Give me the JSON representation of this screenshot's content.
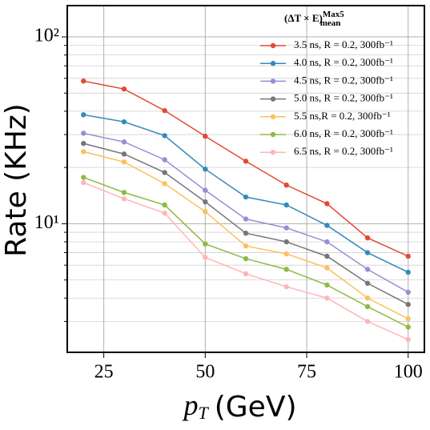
{
  "chart_data": {
    "type": "line",
    "legend_title": {
      "main": "(ΔT × E)",
      "sup": "Max5",
      "sub": "mean"
    },
    "ylabel": "Rate (KHz)",
    "xlabel": {
      "symbol": "p",
      "sub": "T",
      "unit": "(GeV)"
    },
    "x": [
      20,
      30,
      40,
      50,
      60,
      70,
      80,
      90,
      100
    ],
    "xlim": [
      16,
      104
    ],
    "xticks": [
      25,
      50,
      75,
      100
    ],
    "ylim": [
      2.05,
      147
    ],
    "log_y": true,
    "yticks": [
      {
        "value": 10,
        "label": "10¹"
      },
      {
        "value": 100,
        "label": "10²"
      }
    ],
    "yminorticks": [
      3,
      4,
      5,
      6,
      7,
      8,
      9,
      20,
      30,
      40,
      50,
      60,
      70,
      80,
      90
    ],
    "grid": true,
    "legend": "upper right",
    "series": [
      {
        "name": "3.5 ns, R = 0.2, 300fb⁻¹",
        "color": "#E24A33",
        "values": [
          58,
          52.6,
          40.3,
          29.4,
          21.6,
          16.1,
          12.8,
          8.4,
          6.7
        ]
      },
      {
        "name": "4.0 ns, R = 0.2, 300fb⁻¹",
        "color": "#348ABD",
        "values": [
          38.3,
          35.1,
          29.6,
          19.6,
          13.9,
          12.6,
          9.8,
          7.0,
          5.5
        ]
      },
      {
        "name": "4.5 ns, R = 0.2, 300fb⁻¹",
        "color": "#988ED5",
        "values": [
          30.5,
          27.4,
          22.0,
          15.1,
          10.6,
          9.5,
          8.0,
          5.7,
          4.3
        ]
      },
      {
        "name": "5.0 ns, R = 0.2, 300fb⁻¹",
        "color": "#777777",
        "values": [
          26.9,
          23.6,
          18.8,
          13.1,
          8.9,
          8.0,
          6.7,
          4.8,
          3.7
        ]
      },
      {
        "name": "5.5 ns,R = 0.2, 300fb⁻¹",
        "color": "#FBC15E",
        "values": [
          24.3,
          21.4,
          16.4,
          11.6,
          7.6,
          6.9,
          5.8,
          4.0,
          3.1
        ]
      },
      {
        "name": "6.0 ns, R = 0.2, 300fb⁻¹",
        "color": "#8EBA42",
        "values": [
          17.7,
          14.7,
          12.6,
          7.8,
          6.5,
          5.7,
          4.7,
          3.6,
          2.8
        ]
      },
      {
        "name": "6.5 ns, R = 0.2, 300fb⁻¹",
        "color": "#FFB5B8",
        "values": [
          16.6,
          13.6,
          11.4,
          6.6,
          5.4,
          4.6,
          4.0,
          3.0,
          2.4
        ]
      }
    ]
  }
}
